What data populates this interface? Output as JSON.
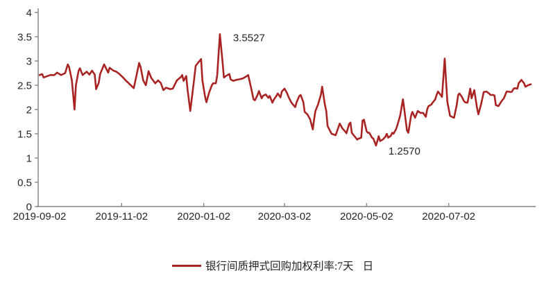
{
  "chart_data": {
    "type": "line",
    "title": "",
    "grid": false,
    "legend_position": "bottom",
    "colors": {
      "line": "#AA2323",
      "axis": "#808080",
      "text": "#262626"
    },
    "y_axis": {
      "min": 0,
      "max": 4,
      "step": 0.5,
      "tick_values": [
        0,
        0.5,
        1,
        1.5,
        2,
        2.5,
        3,
        3.5,
        4
      ],
      "tick_labels": [
        "0",
        "0.5",
        "1",
        "1.5",
        "2",
        "2.5",
        "3",
        "3.5",
        "4"
      ]
    },
    "x_axis": {
      "start_date": "2019-09-02",
      "end_day": 365,
      "tick_days": [
        0,
        61,
        122,
        182,
        243,
        304
      ],
      "tick_labels": [
        "2019-09-02",
        "2019-11-02",
        "2020-01-02",
        "2020-03-02",
        "2020-05-02",
        "2020-07-02"
      ]
    },
    "annotations": [
      {
        "label": "3.5527",
        "day": 134,
        "value": 3.5527,
        "placement": "above-right"
      },
      {
        "label": "1.2570",
        "day": 250,
        "value": 1.257,
        "placement": "below-right"
      }
    ],
    "series": [
      {
        "name": "银行间质押式回购加权利率:7天",
        "freq": "日",
        "color": "#AA2323",
        "points": [
          [
            0,
            2.71
          ],
          [
            2,
            2.73
          ],
          [
            3,
            2.66
          ],
          [
            6,
            2.69
          ],
          [
            8,
            2.71
          ],
          [
            11,
            2.71
          ],
          [
            13,
            2.76
          ],
          [
            16,
            2.71
          ],
          [
            19,
            2.75
          ],
          [
            21,
            2.93
          ],
          [
            22,
            2.87
          ],
          [
            24,
            2.6
          ],
          [
            26,
            2.0
          ],
          [
            27,
            2.5
          ],
          [
            29,
            2.8
          ],
          [
            30,
            2.85
          ],
          [
            32,
            2.71
          ],
          [
            35,
            2.78
          ],
          [
            37,
            2.72
          ],
          [
            39,
            2.8
          ],
          [
            41,
            2.72
          ],
          [
            42,
            2.42
          ],
          [
            44,
            2.55
          ],
          [
            45,
            2.73
          ],
          [
            48,
            2.93
          ],
          [
            51,
            2.76
          ],
          [
            52,
            2.86
          ],
          [
            55,
            2.8
          ],
          [
            57,
            2.78
          ],
          [
            59,
            2.74
          ],
          [
            62,
            2.66
          ],
          [
            64,
            2.6
          ],
          [
            67,
            2.52
          ],
          [
            70,
            2.44
          ],
          [
            72,
            2.7
          ],
          [
            74,
            2.96
          ],
          [
            75,
            2.88
          ],
          [
            77,
            2.6
          ],
          [
            79,
            2.5
          ],
          [
            81,
            2.79
          ],
          [
            83,
            2.65
          ],
          [
            86,
            2.54
          ],
          [
            88,
            2.6
          ],
          [
            90,
            2.55
          ],
          [
            92,
            2.4
          ],
          [
            94,
            2.45
          ],
          [
            97,
            2.42
          ],
          [
            99,
            2.43
          ],
          [
            102,
            2.6
          ],
          [
            105,
            2.67
          ],
          [
            106,
            2.71
          ],
          [
            107,
            2.59
          ],
          [
            109,
            2.69
          ],
          [
            110,
            2.4
          ],
          [
            112,
            1.97
          ],
          [
            113,
            2.2
          ],
          [
            115,
            2.66
          ],
          [
            116,
            2.9
          ],
          [
            118,
            2.97
          ],
          [
            120,
            3.04
          ],
          [
            121,
            2.6
          ],
          [
            123,
            2.26
          ],
          [
            124,
            2.15
          ],
          [
            126,
            2.35
          ],
          [
            128,
            2.5
          ],
          [
            129,
            2.54
          ],
          [
            131,
            2.54
          ],
          [
            132,
            2.7
          ],
          [
            134,
            3.5527
          ],
          [
            136,
            2.97
          ],
          [
            137,
            2.66
          ],
          [
            139,
            2.7
          ],
          [
            141,
            2.73
          ],
          [
            142,
            2.62
          ],
          [
            144,
            2.59
          ],
          [
            146,
            2.61
          ],
          [
            148,
            2.62
          ],
          [
            151,
            2.64
          ],
          [
            154,
            2.69
          ],
          [
            155,
            2.71
          ],
          [
            157,
            2.47
          ],
          [
            159,
            2.21
          ],
          [
            160,
            2.19
          ],
          [
            162,
            2.3
          ],
          [
            163,
            2.38
          ],
          [
            165,
            2.23
          ],
          [
            166,
            2.28
          ],
          [
            168,
            2.31
          ],
          [
            170,
            2.24
          ],
          [
            171,
            2.28
          ],
          [
            173,
            2.14
          ],
          [
            174,
            2.2
          ],
          [
            176,
            2.28
          ],
          [
            177,
            2.33
          ],
          [
            179,
            2.25
          ],
          [
            180,
            2.37
          ],
          [
            182,
            2.43
          ],
          [
            184,
            2.33
          ],
          [
            185,
            2.26
          ],
          [
            187,
            2.15
          ],
          [
            188,
            2.11
          ],
          [
            190,
            2.05
          ],
          [
            191,
            2.15
          ],
          [
            193,
            2.28
          ],
          [
            194,
            2.3
          ],
          [
            196,
            2.15
          ],
          [
            197,
            1.95
          ],
          [
            199,
            1.9
          ],
          [
            201,
            1.8
          ],
          [
            203,
            1.59
          ],
          [
            204,
            1.8
          ],
          [
            205,
            1.97
          ],
          [
            207,
            2.11
          ],
          [
            209,
            2.3
          ],
          [
            210,
            2.47
          ],
          [
            212,
            2.1
          ],
          [
            213,
            1.97
          ],
          [
            214,
            1.66
          ],
          [
            216,
            1.55
          ],
          [
            217,
            1.5
          ],
          [
            220,
            1.47
          ],
          [
            221,
            1.55
          ],
          [
            223,
            1.71
          ],
          [
            225,
            1.61
          ],
          [
            227,
            1.55
          ],
          [
            228,
            1.51
          ],
          [
            230,
            1.7
          ],
          [
            231,
            1.73
          ],
          [
            232,
            1.52
          ],
          [
            234,
            1.45
          ],
          [
            236,
            1.38
          ],
          [
            237,
            1.4
          ],
          [
            239,
            1.42
          ],
          [
            240,
            1.77
          ],
          [
            241,
            1.79
          ],
          [
            243,
            1.55
          ],
          [
            244,
            1.52
          ],
          [
            245,
            1.52
          ],
          [
            247,
            1.42
          ],
          [
            248,
            1.4
          ],
          [
            250,
            1.257
          ],
          [
            252,
            1.45
          ],
          [
            253,
            1.35
          ],
          [
            255,
            1.38
          ],
          [
            257,
            1.44
          ],
          [
            258,
            1.5
          ],
          [
            259,
            1.42
          ],
          [
            261,
            1.46
          ],
          [
            262,
            1.52
          ],
          [
            263,
            1.5
          ],
          [
            265,
            1.6
          ],
          [
            266,
            1.69
          ],
          [
            268,
            1.88
          ],
          [
            270,
            2.21
          ],
          [
            271,
            2.0
          ],
          [
            273,
            1.57
          ],
          [
            274,
            1.52
          ],
          [
            276,
            1.87
          ],
          [
            277,
            1.95
          ],
          [
            279,
            1.83
          ],
          [
            280,
            1.9
          ],
          [
            281,
            1.97
          ],
          [
            283,
            1.93
          ],
          [
            285,
            1.93
          ],
          [
            287,
            1.85
          ],
          [
            288,
            2.0
          ],
          [
            289,
            2.07
          ],
          [
            291,
            2.1
          ],
          [
            292,
            2.14
          ],
          [
            294,
            2.21
          ],
          [
            295,
            2.3
          ],
          [
            296,
            2.37
          ],
          [
            298,
            2.3
          ],
          [
            299,
            2.26
          ],
          [
            301,
            3.05
          ],
          [
            302,
            2.6
          ],
          [
            303,
            2.16
          ],
          [
            305,
            1.87
          ],
          [
            307,
            1.84
          ],
          [
            308,
            1.83
          ],
          [
            310,
            2.1
          ],
          [
            311,
            2.3
          ],
          [
            312,
            2.33
          ],
          [
            314,
            2.25
          ],
          [
            315,
            2.19
          ],
          [
            316,
            2.15
          ],
          [
            318,
            2.14
          ],
          [
            320,
            2.43
          ],
          [
            321,
            2.23
          ],
          [
            323,
            2.4
          ],
          [
            325,
            2.04
          ],
          [
            326,
            1.9
          ],
          [
            328,
            2.1
          ],
          [
            329,
            2.23
          ],
          [
            330,
            2.36
          ],
          [
            332,
            2.37
          ],
          [
            334,
            2.33
          ],
          [
            335,
            2.3
          ],
          [
            337,
            2.3
          ],
          [
            338,
            2.29
          ],
          [
            339,
            2.09
          ],
          [
            341,
            2.07
          ],
          [
            343,
            2.16
          ],
          [
            344,
            2.2
          ],
          [
            345,
            2.23
          ],
          [
            347,
            2.37
          ],
          [
            348,
            2.37
          ],
          [
            350,
            2.36
          ],
          [
            351,
            2.37
          ],
          [
            352,
            2.42
          ],
          [
            353,
            2.44
          ],
          [
            355,
            2.43
          ],
          [
            356,
            2.54
          ],
          [
            358,
            2.61
          ],
          [
            360,
            2.54
          ],
          [
            361,
            2.47
          ],
          [
            363,
            2.5
          ],
          [
            365,
            2.52
          ]
        ]
      }
    ]
  },
  "legend": {
    "label": "银行间质押式回购加权利率:7天",
    "freq": "日"
  }
}
